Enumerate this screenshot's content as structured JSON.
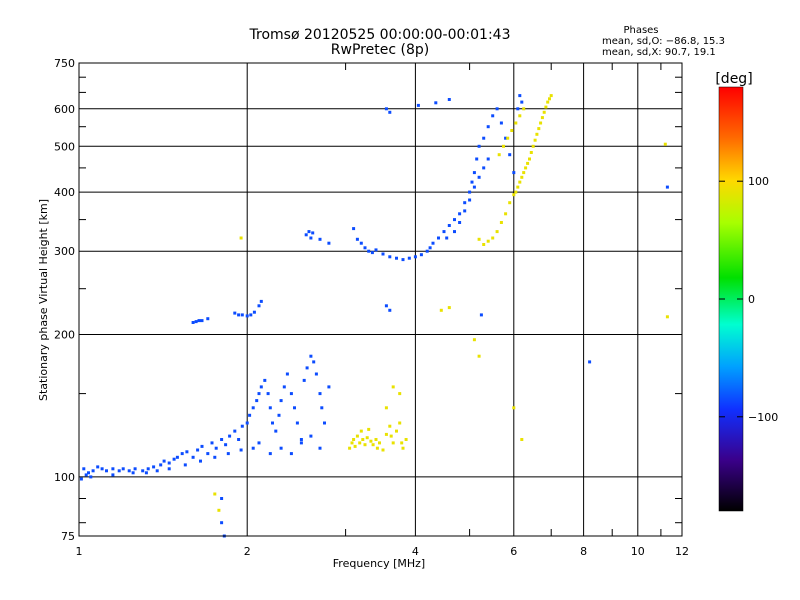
{
  "chart_data": {
    "type": "scatter",
    "title": "Tromsø 20120525 00:00:00-00:01:43",
    "subtitle": "RwPretec (8p)",
    "xlabel": "Frequency [MHz]",
    "ylabel": "Stationary phase Virtual Height [km]",
    "x_scale": "log",
    "y_scale": "log",
    "xlim": [
      1,
      12
    ],
    "ylim": [
      75,
      750
    ],
    "x_ticks": [
      "1",
      "2",
      "4",
      "6",
      "8",
      "10",
      "12"
    ],
    "x_tick_values": [
      1,
      2,
      4,
      6,
      8,
      10,
      12
    ],
    "y_ticks": [
      "75",
      "100",
      "200",
      "300",
      "400",
      "500",
      "600",
      "750"
    ],
    "y_tick_values": [
      75,
      100,
      200,
      300,
      400,
      500,
      600,
      750
    ],
    "grid": true,
    "stats": {
      "heading": "Phases",
      "line_o": "mean, sd,O: −86.8, 15.3",
      "line_x": "mean, sd,X:  90.7, 19.1"
    },
    "colorbar": {
      "unit": "[deg]",
      "range": [
        -180,
        180
      ],
      "tick_labels": [
        "100",
        "0",
        "−100"
      ],
      "tick_values": [
        100,
        0,
        -100
      ]
    },
    "series": [
      {
        "role": "O-mode",
        "value_phase_deg": -90,
        "points": [
          [
            1.02,
            104
          ],
          [
            1.04,
            102
          ],
          [
            1.06,
            103
          ],
          [
            1.08,
            105
          ],
          [
            1.1,
            104
          ],
          [
            1.12,
            103
          ],
          [
            1.15,
            104
          ],
          [
            1.18,
            103
          ],
          [
            1.2,
            104
          ],
          [
            1.23,
            103
          ],
          [
            1.26,
            104
          ],
          [
            1.3,
            103
          ],
          [
            1.33,
            104
          ],
          [
            1.36,
            105
          ],
          [
            1.4,
            106
          ],
          [
            1.42,
            108
          ],
          [
            1.45,
            107
          ],
          [
            1.48,
            109
          ],
          [
            1.5,
            110
          ],
          [
            1.53,
            112
          ],
          [
            1.56,
            113
          ],
          [
            1.6,
            110
          ],
          [
            1.63,
            114
          ],
          [
            1.66,
            116
          ],
          [
            1.7,
            112
          ],
          [
            1.73,
            118
          ],
          [
            1.76,
            115
          ],
          [
            1.8,
            120
          ],
          [
            1.83,
            117
          ],
          [
            1.86,
            122
          ],
          [
            1.9,
            125
          ],
          [
            1.93,
            120
          ],
          [
            1.96,
            128
          ],
          [
            2.0,
            130
          ],
          [
            2.02,
            135
          ],
          [
            2.05,
            140
          ],
          [
            2.08,
            145
          ],
          [
            2.1,
            150
          ],
          [
            2.12,
            155
          ],
          [
            2.15,
            160
          ],
          [
            2.18,
            150
          ],
          [
            2.2,
            140
          ],
          [
            2.22,
            130
          ],
          [
            2.25,
            125
          ],
          [
            2.28,
            135
          ],
          [
            2.3,
            145
          ],
          [
            2.33,
            155
          ],
          [
            2.36,
            165
          ],
          [
            2.4,
            150
          ],
          [
            2.43,
            140
          ],
          [
            2.46,
            130
          ],
          [
            2.5,
            120
          ],
          [
            2.53,
            160
          ],
          [
            2.56,
            170
          ],
          [
            2.6,
            180
          ],
          [
            2.63,
            175
          ],
          [
            2.66,
            165
          ],
          [
            2.7,
            150
          ],
          [
            2.72,
            140
          ],
          [
            2.75,
            130
          ],
          [
            2.8,
            155
          ],
          [
            2.1,
            118
          ],
          [
            2.2,
            112
          ],
          [
            2.3,
            115
          ],
          [
            2.4,
            112
          ],
          [
            2.5,
            118
          ],
          [
            2.6,
            122
          ],
          [
            2.7,
            115
          ],
          [
            2.05,
            115
          ],
          [
            1.95,
            114
          ],
          [
            1.85,
            112
          ],
          [
            1.75,
            110
          ],
          [
            1.65,
            108
          ],
          [
            1.55,
            106
          ],
          [
            1.45,
            104
          ],
          [
            1.38,
            103
          ],
          [
            1.32,
            102
          ],
          [
            1.25,
            102
          ],
          [
            1.15,
            101
          ],
          [
            1.05,
            100
          ],
          [
            1.01,
            99
          ],
          [
            1.03,
            101
          ],
          [
            1.6,
            212
          ],
          [
            1.62,
            213
          ],
          [
            1.64,
            214
          ],
          [
            1.66,
            214
          ],
          [
            1.7,
            216
          ],
          [
            1.9,
            222
          ],
          [
            1.93,
            220
          ],
          [
            1.96,
            220
          ],
          [
            2.0,
            219
          ],
          [
            2.03,
            220
          ],
          [
            2.06,
            223
          ],
          [
            2.1,
            230
          ],
          [
            2.12,
            235
          ],
          [
            2.55,
            325
          ],
          [
            2.58,
            330
          ],
          [
            2.6,
            320
          ],
          [
            2.62,
            328
          ],
          [
            2.7,
            318
          ],
          [
            2.8,
            312
          ],
          [
            3.1,
            335
          ],
          [
            3.15,
            318
          ],
          [
            3.2,
            312
          ],
          [
            3.25,
            305
          ],
          [
            3.3,
            300
          ],
          [
            3.35,
            298
          ],
          [
            3.4,
            302
          ],
          [
            3.5,
            296
          ],
          [
            3.6,
            292
          ],
          [
            3.7,
            290
          ],
          [
            3.8,
            288
          ],
          [
            3.9,
            290
          ],
          [
            4.0,
            292
          ],
          [
            4.1,
            295
          ],
          [
            4.2,
            300
          ],
          [
            4.25,
            305
          ],
          [
            4.3,
            312
          ],
          [
            4.4,
            320
          ],
          [
            4.5,
            330
          ],
          [
            4.6,
            340
          ],
          [
            4.7,
            350
          ],
          [
            4.8,
            360
          ],
          [
            4.9,
            380
          ],
          [
            5.0,
            400
          ],
          [
            5.05,
            420
          ],
          [
            5.1,
            440
          ],
          [
            5.15,
            470
          ],
          [
            5.2,
            500
          ],
          [
            5.3,
            520
          ],
          [
            5.4,
            550
          ],
          [
            5.5,
            580
          ],
          [
            5.6,
            600
          ],
          [
            5.7,
            560
          ],
          [
            5.8,
            520
          ],
          [
            5.9,
            480
          ],
          [
            6.0,
            440
          ],
          [
            6.1,
            600
          ],
          [
            6.15,
            640
          ],
          [
            6.2,
            620
          ],
          [
            4.7,
            330
          ],
          [
            4.8,
            345
          ],
          [
            4.9,
            365
          ],
          [
            5.0,
            385
          ],
          [
            5.1,
            410
          ],
          [
            5.2,
            430
          ],
          [
            5.3,
            450
          ],
          [
            5.4,
            470
          ],
          [
            3.55,
            600
          ],
          [
            3.6,
            590
          ],
          [
            4.05,
            610
          ],
          [
            4.35,
            618
          ],
          [
            4.6,
            628
          ],
          [
            3.55,
            230
          ],
          [
            3.6,
            225
          ],
          [
            4.55,
            320
          ],
          [
            5.25,
            220
          ],
          [
            8.2,
            175
          ],
          [
            11.3,
            410
          ],
          [
            1.8,
            90
          ],
          [
            1.8,
            80
          ],
          [
            1.82,
            75
          ]
        ]
      },
      {
        "role": "X-mode",
        "value_phase_deg": 90,
        "points": [
          [
            3.05,
            115
          ],
          [
            3.08,
            118
          ],
          [
            3.1,
            120
          ],
          [
            3.12,
            116
          ],
          [
            3.15,
            122
          ],
          [
            3.18,
            118
          ],
          [
            3.2,
            125
          ],
          [
            3.22,
            120
          ],
          [
            3.25,
            117
          ],
          [
            3.28,
            121
          ],
          [
            3.3,
            126
          ],
          [
            3.33,
            119
          ],
          [
            3.36,
            117
          ],
          [
            3.4,
            120
          ],
          [
            3.42,
            115
          ],
          [
            3.45,
            118
          ],
          [
            3.5,
            114
          ],
          [
            3.55,
            123
          ],
          [
            3.6,
            128
          ],
          [
            3.62,
            122
          ],
          [
            3.65,
            118
          ],
          [
            3.7,
            125
          ],
          [
            3.75,
            130
          ],
          [
            3.78,
            118
          ],
          [
            3.8,
            115
          ],
          [
            3.85,
            120
          ],
          [
            3.55,
            140
          ],
          [
            3.65,
            155
          ],
          [
            3.75,
            150
          ],
          [
            5.6,
            330
          ],
          [
            5.7,
            345
          ],
          [
            5.8,
            360
          ],
          [
            5.9,
            380
          ],
          [
            6.0,
            395
          ],
          [
            6.1,
            410
          ],
          [
            6.2,
            430
          ],
          [
            6.3,
            450
          ],
          [
            6.4,
            470
          ],
          [
            6.5,
            500
          ],
          [
            6.6,
            530
          ],
          [
            6.7,
            560
          ],
          [
            6.8,
            590
          ],
          [
            6.9,
            620
          ],
          [
            7.0,
            640
          ],
          [
            6.05,
            400
          ],
          [
            6.15,
            420
          ],
          [
            6.25,
            440
          ],
          [
            6.35,
            460
          ],
          [
            6.45,
            485
          ],
          [
            6.55,
            515
          ],
          [
            6.65,
            545
          ],
          [
            6.75,
            575
          ],
          [
            6.85,
            605
          ],
          [
            6.95,
            630
          ],
          [
            5.5,
            320
          ],
          [
            5.4,
            315
          ],
          [
            5.3,
            310
          ],
          [
            5.2,
            318
          ],
          [
            5.65,
            480
          ],
          [
            5.75,
            500
          ],
          [
            5.85,
            520
          ],
          [
            5.95,
            540
          ],
          [
            6.05,
            560
          ],
          [
            6.15,
            580
          ],
          [
            6.25,
            600
          ],
          [
            4.45,
            225
          ],
          [
            4.6,
            228
          ],
          [
            5.1,
            195
          ],
          [
            5.2,
            180
          ],
          [
            6.0,
            140
          ],
          [
            6.2,
            120
          ],
          [
            11.2,
            505
          ],
          [
            11.3,
            218
          ],
          [
            1.95,
            320
          ],
          [
            1.75,
            92
          ],
          [
            1.78,
            85
          ]
        ]
      }
    ]
  }
}
